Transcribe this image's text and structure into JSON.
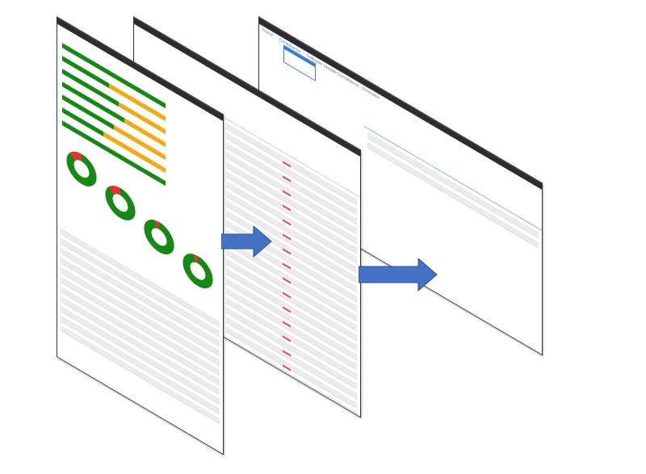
{
  "panels": {
    "back": {
      "title": "Software Update Compliance - Overview",
      "nav": [
        "Home",
        "Compliance"
      ],
      "table_rows": 4
    },
    "middle": {
      "table_rows": 48
    },
    "front": {
      "bars_green_fraction": [
        1.0,
        0.45,
        0.55,
        0.6,
        0.5,
        0.4,
        1.0
      ],
      "donuts_green_fraction": [
        0.85,
        0.85,
        0.95,
        0.95
      ],
      "table_rows": 22
    }
  },
  "colors": {
    "green": "#138a13",
    "orange": "#f5aa15",
    "red": "#e33333",
    "arrow": "#4472c4",
    "titlebar": "#2d2d2d"
  }
}
